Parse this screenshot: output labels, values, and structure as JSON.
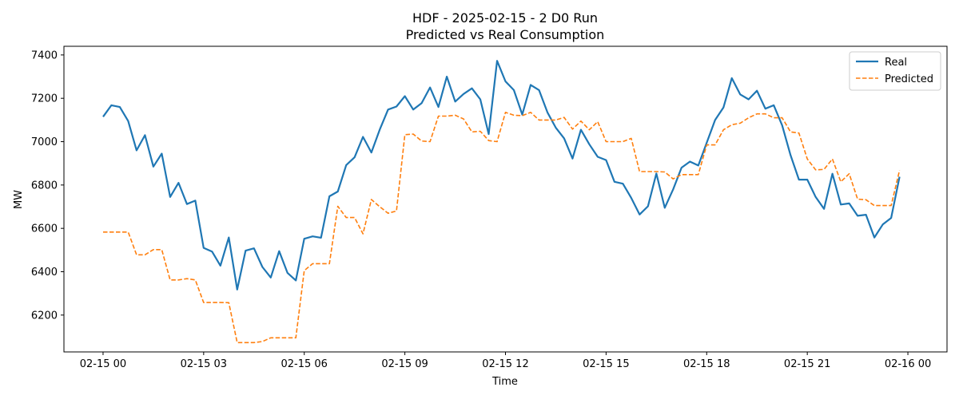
{
  "chart_data": {
    "type": "line",
    "title": "HDF - 2025-02-15 - 2 D0 Run",
    "subtitle": "Predicted vs Real Consumption",
    "xlabel": "Time",
    "ylabel": "MW",
    "xlim": [
      "2025-02-14T22:50",
      "2025-02-16T01:10"
    ],
    "ylim": [
      6030,
      7440
    ],
    "x_ticks": [
      {
        "time": "2025-02-15T00:00",
        "label": "02-15 00"
      },
      {
        "time": "2025-02-15T03:00",
        "label": "02-15 03"
      },
      {
        "time": "2025-02-15T06:00",
        "label": "02-15 06"
      },
      {
        "time": "2025-02-15T09:00",
        "label": "02-15 09"
      },
      {
        "time": "2025-02-15T12:00",
        "label": "02-15 12"
      },
      {
        "time": "2025-02-15T15:00",
        "label": "02-15 15"
      },
      {
        "time": "2025-02-15T18:00",
        "label": "02-15 18"
      },
      {
        "time": "2025-02-15T21:00",
        "label": "02-15 21"
      },
      {
        "time": "2025-02-16T00:00",
        "label": "02-16 00"
      }
    ],
    "y_ticks": [
      6200,
      6400,
      6600,
      6800,
      7000,
      7200,
      7400
    ],
    "grid": false,
    "legend_position": "top-right",
    "x_start": "2025-02-15T00:00",
    "x_step_minutes": 15,
    "series": [
      {
        "name": "Real",
        "color": "#1f77b4",
        "style": "solid",
        "values": [
          7115,
          7168,
          7160,
          7095,
          6960,
          7030,
          6885,
          6945,
          6745,
          6810,
          6712,
          6728,
          6510,
          6493,
          6428,
          6558,
          6318,
          6497,
          6508,
          6422,
          6373,
          6495,
          6395,
          6360,
          6552,
          6563,
          6557,
          6748,
          6770,
          6892,
          6928,
          7022,
          6950,
          7055,
          7148,
          7162,
          7210,
          7148,
          7178,
          7250,
          7160,
          7300,
          7185,
          7220,
          7246,
          7195,
          7035,
          7373,
          7278,
          7238,
          7125,
          7262,
          7238,
          7135,
          7065,
          7015,
          6922,
          7055,
          6988,
          6930,
          6915,
          6815,
          6806,
          6740,
          6664,
          6702,
          6853,
          6695,
          6780,
          6880,
          6908,
          6890,
          6995,
          7100,
          7158,
          7293,
          7218,
          7195,
          7235,
          7152,
          7168,
          7075,
          6938,
          6825,
          6825,
          6745,
          6690,
          6852,
          6710,
          6715,
          6658,
          6663,
          6558,
          6618,
          6648,
          6838
        ]
      },
      {
        "name": "Predicted",
        "color": "#ff7f0e",
        "style": "dashed",
        "values": [
          6583,
          6583,
          6583,
          6583,
          6478,
          6478,
          6502,
          6502,
          6362,
          6362,
          6368,
          6362,
          6258,
          6258,
          6258,
          6257,
          6073,
          6073,
          6073,
          6078,
          6095,
          6095,
          6095,
          6095,
          6405,
          6437,
          6437,
          6437,
          6702,
          6650,
          6650,
          6575,
          6733,
          6700,
          6670,
          6680,
          7032,
          7035,
          7003,
          7000,
          7118,
          7118,
          7122,
          7105,
          7045,
          7048,
          7005,
          7000,
          7135,
          7122,
          7120,
          7135,
          7100,
          7100,
          7100,
          7112,
          7058,
          7095,
          7055,
          7092,
          7000,
          7000,
          7000,
          7015,
          6862,
          6862,
          6862,
          6860,
          6828,
          6848,
          6848,
          6848,
          6985,
          6985,
          7055,
          7078,
          7085,
          7110,
          7128,
          7128,
          7110,
          7110,
          7045,
          7040,
          6920,
          6870,
          6872,
          6920,
          6815,
          6852,
          6735,
          6732,
          6705,
          6705,
          6705,
          6868
        ]
      }
    ]
  }
}
